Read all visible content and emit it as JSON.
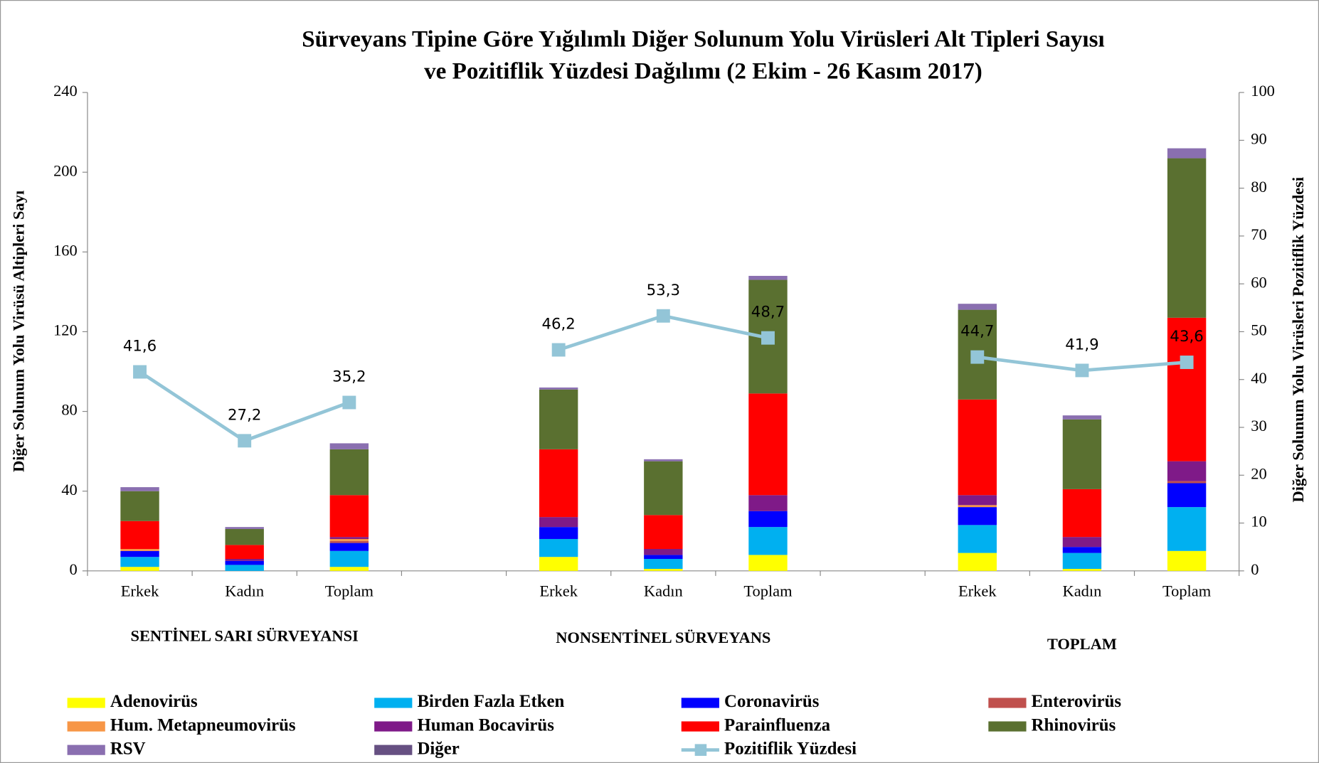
{
  "chart_data": {
    "type": "bar",
    "title": [
      "Sürveyans Tipine Göre Yığılımlı Diğer Solunum Yolu Virüsleri Alt Tipleri Sayısı",
      "ve  Pozitiflik Yüzdesi Dağılımı (2 Ekim - 26 Kasım 2017)"
    ],
    "ylabel": "Diğer Solunum Yolu Virüsü Altipleri Sayı",
    "y2label": "Diğer Solunum Yolu Virüsleri  Pozitiflik Yüzdesi",
    "categories": [
      "Erkek",
      "Kadın",
      "Toplam",
      null,
      "Erkek",
      "Kadın",
      "Toplam",
      null,
      "Erkek",
      "Kadın",
      "Toplam"
    ],
    "groups": [
      {
        "label": "SENTİNEL SARI SÜRVEYANSI",
        "from": 0,
        "to": 2
      },
      {
        "label": "NONSENTİNEL SÜRVEYANS",
        "from": 4,
        "to": 6
      },
      {
        "label": "TOPLAM",
        "from": 8,
        "to": 10
      }
    ],
    "stacked": true,
    "series": [
      {
        "name": "Adenovirüs",
        "color": "#ffff00",
        "values": [
          2,
          0,
          2,
          null,
          7,
          1,
          8,
          null,
          9,
          1,
          10
        ]
      },
      {
        "name": "Birden Fazla Etken",
        "color": "#00b0f0",
        "values": [
          5,
          3,
          8,
          null,
          9,
          5,
          14,
          null,
          14,
          8,
          22
        ]
      },
      {
        "name": "Coronavirüs",
        "color": "#0000ff",
        "values": [
          3,
          2,
          4,
          null,
          6,
          2,
          8,
          null,
          9,
          3,
          12
        ]
      },
      {
        "name": "Enterovirüs",
        "color": "#c0504d",
        "values": [
          0,
          0,
          1,
          null,
          0,
          0,
          0,
          null,
          0,
          0,
          1
        ]
      },
      {
        "name": "Hum. Metapneumovirüs",
        "color": "#f79646",
        "values": [
          1,
          0,
          1,
          null,
          0,
          0,
          0,
          null,
          1,
          0,
          0
        ]
      },
      {
        "name": "Human Bocavirüs",
        "color": "#7f1a88",
        "values": [
          0,
          1,
          1,
          null,
          5,
          3,
          8,
          null,
          5,
          5,
          10
        ]
      },
      {
        "name": "Parainfluenza",
        "color": "#ff0000",
        "values": [
          14,
          7,
          21,
          null,
          34,
          17,
          51,
          null,
          48,
          24,
          72
        ]
      },
      {
        "name": "Rhinovirüs",
        "color": "#5a7030",
        "values": [
          15,
          8,
          23,
          null,
          30,
          27,
          57,
          null,
          45,
          35,
          80
        ]
      },
      {
        "name": "RSV",
        "color": "#8a6fb0",
        "values": [
          2,
          1,
          3,
          null,
          1,
          1,
          2,
          null,
          3,
          2,
          5
        ]
      },
      {
        "name": "Diğer",
        "color": "#665082",
        "values": [
          0,
          0,
          0,
          null,
          0,
          0,
          0,
          null,
          0,
          0,
          0
        ]
      },
      {
        "name": "Pozitiflik Yüzdesi",
        "type": "line",
        "axis": "y2",
        "color": "#93c5d7",
        "values": [
          41.6,
          27.2,
          35.2,
          null,
          46.2,
          53.3,
          48.7,
          null,
          44.7,
          41.9,
          43.6
        ],
        "value_labels": [
          "41,6",
          "27,2",
          "35,2",
          null,
          "46,2",
          "53,3",
          "48,7",
          null,
          "44,7",
          "41,9",
          "43,6"
        ]
      }
    ],
    "ylim": [
      0,
      240
    ],
    "yticks": [
      0,
      40,
      80,
      120,
      160,
      200,
      240
    ],
    "y2lim": [
      0,
      100
    ],
    "y2ticks": [
      0,
      10,
      20,
      30,
      40,
      50,
      60,
      70,
      80,
      90,
      100
    ],
    "legend": "bottom"
  }
}
